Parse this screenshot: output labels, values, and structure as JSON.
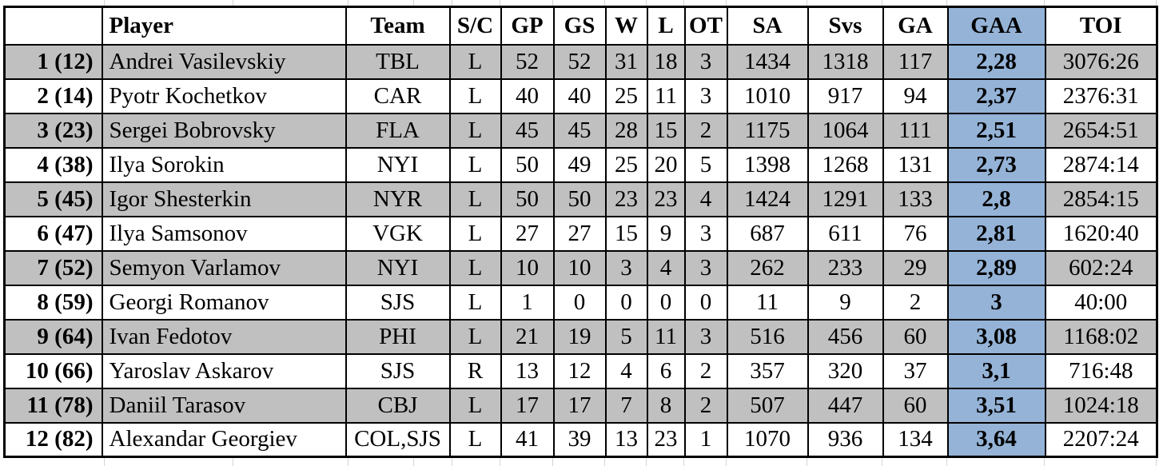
{
  "colors": {
    "stripe_gray": "#c0c0c0",
    "highlight_blue": "#95b3d7",
    "border_black": "#000000",
    "sheet_gridline": "#d4d4d4"
  },
  "table": {
    "columns": [
      {
        "key": "rank",
        "label": ""
      },
      {
        "key": "player",
        "label": "Player"
      },
      {
        "key": "team",
        "label": "Team"
      },
      {
        "key": "sc",
        "label": "S/C"
      },
      {
        "key": "gp",
        "label": "GP"
      },
      {
        "key": "gs",
        "label": "GS"
      },
      {
        "key": "w",
        "label": "W"
      },
      {
        "key": "l",
        "label": "L"
      },
      {
        "key": "ot",
        "label": "OT"
      },
      {
        "key": "sa",
        "label": "SA"
      },
      {
        "key": "svs",
        "label": "Svs"
      },
      {
        "key": "ga",
        "label": "GA"
      },
      {
        "key": "gaa",
        "label": "GAA"
      },
      {
        "key": "toi",
        "label": "TOI"
      }
    ],
    "rows": [
      {
        "rank": "1 (12)",
        "player": "Andrei Vasilevskiy",
        "team": "TBL",
        "sc": "L",
        "gp": "52",
        "gs": "52",
        "w": "31",
        "l": "18",
        "ot": "3",
        "sa": "1434",
        "svs": "1318",
        "ga": "117",
        "gaaa": "",
        "gaa": "2,28",
        "toi": "3076:26"
      },
      {
        "rank": "2 (14)",
        "player": "Pyotr Kochetkov",
        "team": "CAR",
        "sc": "L",
        "gp": "40",
        "gs": "40",
        "w": "25",
        "l": "11",
        "ot": "3",
        "sa": "1010",
        "svs": "917",
        "ga": "94",
        "gaa": "2,37",
        "toi": "2376:31"
      },
      {
        "rank": "3 (23)",
        "player": "Sergei Bobrovsky",
        "team": "FLA",
        "sc": "L",
        "gp": "45",
        "gs": "45",
        "w": "28",
        "l": "15",
        "ot": "2",
        "sa": "1175",
        "svs": "1064",
        "ga": "111",
        "gaa": "2,51",
        "toi": "2654:51"
      },
      {
        "rank": "4 (38)",
        "player": "Ilya Sorokin",
        "team": "NYI",
        "sc": "L",
        "gp": "50",
        "gs": "49",
        "w": "25",
        "l": "20",
        "ot": "5",
        "sa": "1398",
        "svs": "1268",
        "ga": "131",
        "gaa": "2,73",
        "toi": "2874:14"
      },
      {
        "rank": "5 (45)",
        "player": "Igor Shesterkin",
        "team": "NYR",
        "sc": "L",
        "gp": "50",
        "gs": "50",
        "w": "23",
        "l": "23",
        "ot": "4",
        "sa": "1424",
        "svs": "1291",
        "ga": "133",
        "gaa": "2,8",
        "toi": "2854:15"
      },
      {
        "rank": "6 (47)",
        "player": "Ilya Samsonov",
        "team": "VGK",
        "sc": "L",
        "gp": "27",
        "gs": "27",
        "w": "15",
        "l": "9",
        "ot": "3",
        "sa": "687",
        "svs": "611",
        "ga": "76",
        "gaa": "2,81",
        "toi": "1620:40"
      },
      {
        "rank": "7 (52)",
        "player": "Semyon Varlamov",
        "team": "NYI",
        "sc": "L",
        "gp": "10",
        "gs": "10",
        "w": "3",
        "l": "4",
        "ot": "3",
        "sa": "262",
        "svs": "233",
        "ga": "29",
        "gaa": "2,89",
        "toi": "602:24"
      },
      {
        "rank": "8 (59)",
        "player": "Georgi Romanov",
        "team": "SJS",
        "sc": "L",
        "gp": "1",
        "gs": "0",
        "w": "0",
        "l": "0",
        "ot": "0",
        "sa": "11",
        "svs": "9",
        "ga": "2",
        "gaa": "3",
        "toi": "40:00"
      },
      {
        "rank": "9 (64)",
        "player": "Ivan Fedotov",
        "team": "PHI",
        "sc": "L",
        "gp": "21",
        "gs": "19",
        "w": "5",
        "l": "11",
        "ot": "3",
        "sa": "516",
        "svs": "456",
        "ga": "60",
        "gaa": "3,08",
        "toi": "1168:02"
      },
      {
        "rank": "10 (66)",
        "player": "Yaroslav Askarov",
        "team": "SJS",
        "sc": "R",
        "gp": "13",
        "gs": "12",
        "w": "4",
        "l": "6",
        "ot": "2",
        "sa": "357",
        "svs": "320",
        "ga": "37",
        "gaa": "3,1",
        "toi": "716:48"
      },
      {
        "rank": "11 (78)",
        "player": "Daniil Tarasov",
        "team": "CBJ",
        "sc": "L",
        "gp": "17",
        "gs": "17",
        "w": "7",
        "l": "8",
        "ot": "2",
        "sa": "507",
        "svs": "447",
        "ga": "60",
        "gaa": "3,51",
        "toi": "1024:18"
      },
      {
        "rank": "12 (82)",
        "player": "Alexandar Georgiev",
        "team": "COL,SJS",
        "sc": "L",
        "gp": "41",
        "gs": "39",
        "w": "13",
        "l": "23",
        "ot": "1",
        "sa": "1070",
        "svs": "936",
        "ga": "134",
        "gaa": "3,64",
        "toi": "2207:24"
      }
    ]
  }
}
